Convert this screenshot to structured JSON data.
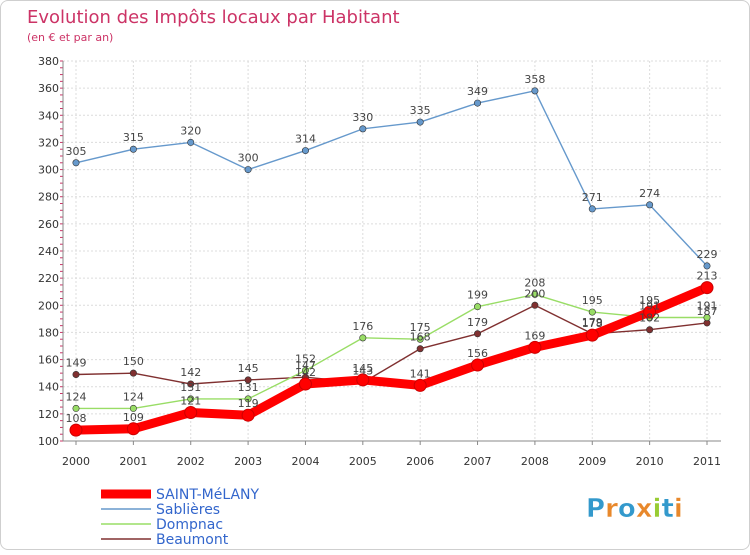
{
  "chart_data": {
    "type": "line",
    "title": "Evolution des Impôts locaux par Habitant",
    "subtitle": "(en € et par an)",
    "x": [
      "2000",
      "2001",
      "2002",
      "2003",
      "2004",
      "2005",
      "2006",
      "2007",
      "2008",
      "2009",
      "2010",
      "2011"
    ],
    "ylim": [
      100,
      380
    ],
    "yticks": [
      100,
      120,
      140,
      160,
      180,
      200,
      220,
      240,
      260,
      280,
      300,
      320,
      340,
      360,
      380
    ],
    "grid": true,
    "legend_position": "bottom-left",
    "series": [
      {
        "name": "SAINT-MéLANY",
        "color": "#ff0000",
        "values": [
          108,
          109,
          121,
          119,
          142,
          145,
          141,
          156,
          169,
          178,
          195,
          213
        ]
      },
      {
        "name": "Sablières",
        "color": "#6699cc",
        "values": [
          305,
          315,
          320,
          300,
          314,
          330,
          335,
          349,
          358,
          271,
          274,
          229
        ]
      },
      {
        "name": "Dompnac",
        "color": "#99dd66",
        "values": [
          124,
          124,
          131,
          131,
          152,
          176,
          175,
          199,
          208,
          195,
          191,
          191
        ]
      },
      {
        "name": "Beaumont",
        "color": "#803030",
        "values": [
          149,
          150,
          142,
          145,
          147,
          143,
          168,
          179,
          200,
          179,
          182,
          187
        ]
      }
    ]
  },
  "brand": {
    "text": "Proxiti"
  }
}
